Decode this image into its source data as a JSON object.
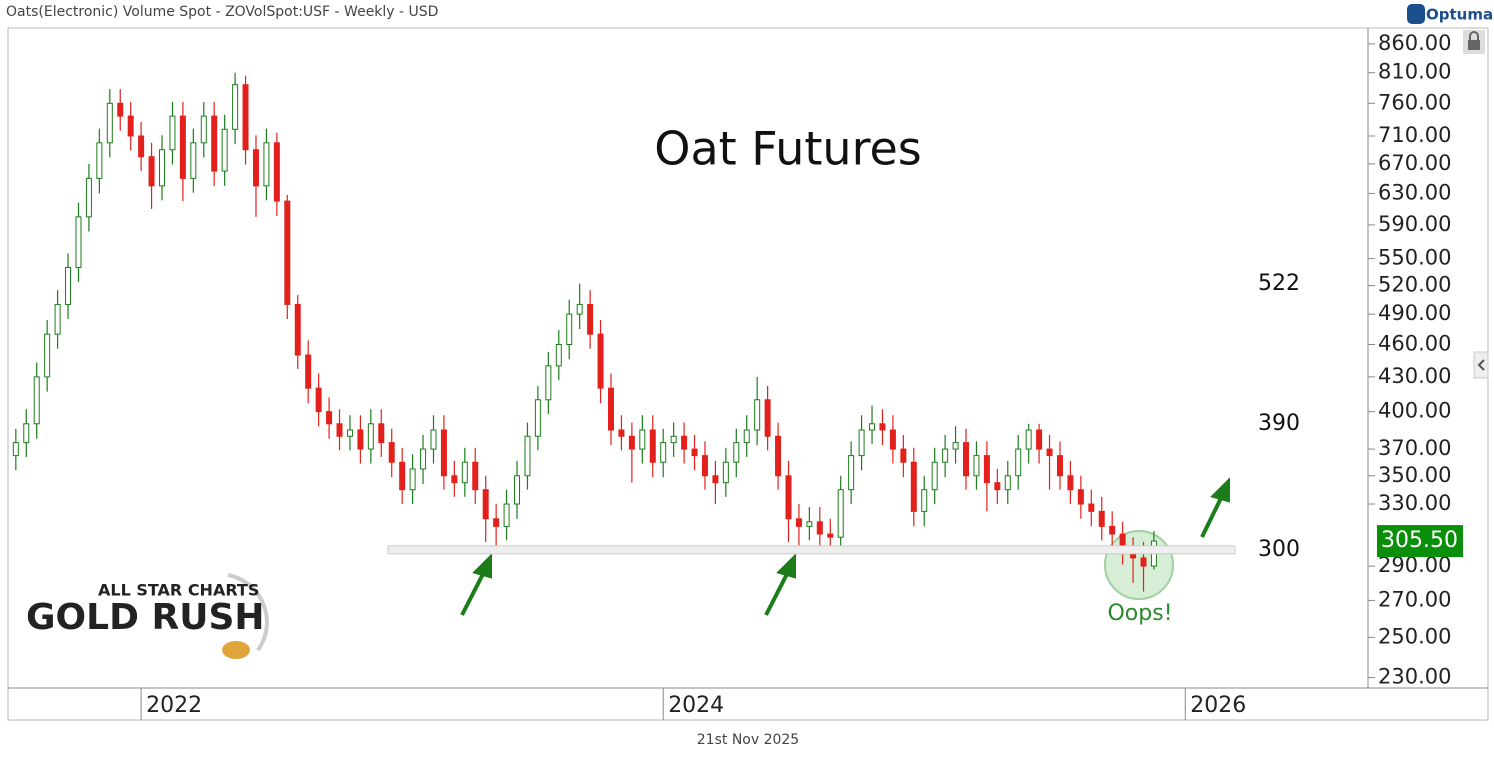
{
  "chart_data": {
    "type": "candlestick",
    "title": "Oats(Electronic) Volume Spot - ZOVolSpot:USF - Weekly - USD",
    "brand": "Optuma",
    "annotation": "Oat Futures",
    "note": "Oops!",
    "footer_date": "21st Nov 2025",
    "logo": [
      "ALL STAR CHARTS",
      "GOLD RUSH"
    ],
    "log_y": true,
    "up_color": "#1c7d1c",
    "down_color": "#e3211c",
    "ylim": [
      225,
      889
    ],
    "yticks": [
      {
        "value": 860,
        "label": "860.00"
      },
      {
        "value": 810,
        "label": "810.00"
      },
      {
        "value": 760,
        "label": "760.00"
      },
      {
        "value": 710,
        "label": "710.00"
      },
      {
        "value": 670,
        "label": "670.00"
      },
      {
        "value": 630,
        "label": "630.00"
      },
      {
        "value": 590,
        "label": "590.00"
      },
      {
        "value": 550,
        "label": "550.00"
      },
      {
        "value": 520,
        "label": "520.00"
      },
      {
        "value": 490,
        "label": "490.00"
      },
      {
        "value": 460,
        "label": "460.00"
      },
      {
        "value": 430,
        "label": "430.00"
      },
      {
        "value": 400,
        "label": "400.00"
      },
      {
        "value": 370,
        "label": "370.00"
      },
      {
        "value": 350,
        "label": "350.00"
      },
      {
        "value": 330,
        "label": "330.00"
      },
      {
        "value": 290,
        "label": "290.00"
      },
      {
        "value": 270,
        "label": "270.00"
      },
      {
        "value": 250,
        "label": "250.00"
      },
      {
        "value": 230,
        "label": "230.00"
      }
    ],
    "xlim": [
      2021.49,
      2026.7
    ],
    "xticks": [
      2022,
      2024,
      2026
    ],
    "levels": [
      522,
      390,
      300
    ],
    "last_price": {
      "value": 305.5,
      "label": "305.50",
      "color": "#0a8f0a"
    },
    "x": [
      2021.52,
      2021.56,
      2021.6,
      2021.64,
      2021.68,
      2021.72,
      2021.76,
      2021.8,
      2021.84,
      2021.88,
      2021.92,
      2021.96,
      2022.0,
      2022.04,
      2022.08,
      2022.12,
      2022.16,
      2022.2,
      2022.24,
      2022.28,
      2022.32,
      2022.36,
      2022.4,
      2022.44,
      2022.48,
      2022.52,
      2022.56,
      2022.6,
      2022.64,
      2022.68,
      2022.72,
      2022.76,
      2022.8,
      2022.84,
      2022.88,
      2022.92,
      2022.96,
      2023.0,
      2023.04,
      2023.08,
      2023.12,
      2023.16,
      2023.2,
      2023.24,
      2023.28,
      2023.32,
      2023.36,
      2023.4,
      2023.44,
      2023.48,
      2023.52,
      2023.56,
      2023.6,
      2023.64,
      2023.68,
      2023.72,
      2023.76,
      2023.8,
      2023.84,
      2023.88,
      2023.92,
      2023.96,
      2024.0,
      2024.04,
      2024.08,
      2024.12,
      2024.16,
      2024.2,
      2024.24,
      2024.28,
      2024.32,
      2024.36,
      2024.4,
      2024.44,
      2024.48,
      2024.52,
      2024.56,
      2024.6,
      2024.64,
      2024.68,
      2024.72,
      2024.76,
      2024.8,
      2024.84,
      2024.88,
      2024.92,
      2024.96,
      2025.0,
      2025.04,
      2025.08,
      2025.12,
      2025.16,
      2025.2,
      2025.24,
      2025.28,
      2025.32,
      2025.36,
      2025.4,
      2025.44,
      2025.48,
      2025.52,
      2025.56,
      2025.6,
      2025.64,
      2025.68,
      2025.72,
      2025.76,
      2025.8,
      2025.84,
      2025.88
    ],
    "ohlc": [
      [
        365,
        386,
        354,
        375
      ],
      [
        375,
        402,
        364,
        390
      ],
      [
        390,
        443,
        378,
        430
      ],
      [
        430,
        484,
        417,
        470
      ],
      [
        470,
        515,
        456,
        500
      ],
      [
        500,
        556,
        485,
        540
      ],
      [
        540,
        618,
        524,
        600
      ],
      [
        600,
        670,
        582,
        650
      ],
      [
        650,
        721,
        630,
        700
      ],
      [
        700,
        783,
        679,
        760
      ],
      [
        760,
        783,
        718,
        740
      ],
      [
        740,
        762,
        689,
        710
      ],
      [
        710,
        731,
        660,
        680
      ],
      [
        680,
        700,
        610,
        640
      ],
      [
        640,
        711,
        621,
        690
      ],
      [
        690,
        762,
        669,
        740
      ],
      [
        740,
        762,
        620,
        650
      ],
      [
        650,
        721,
        631,
        700
      ],
      [
        700,
        762,
        679,
        740
      ],
      [
        740,
        762,
        640,
        660
      ],
      [
        660,
        742,
        640,
        720
      ],
      [
        720,
        810,
        698,
        790
      ],
      [
        790,
        805,
        669,
        690
      ],
      [
        690,
        711,
        600,
        640
      ],
      [
        640,
        721,
        621,
        700
      ],
      [
        700,
        715,
        601,
        620
      ],
      [
        620,
        628,
        485,
        500
      ],
      [
        500,
        510,
        437,
        450
      ],
      [
        450,
        464,
        407,
        420
      ],
      [
        420,
        433,
        388,
        400
      ],
      [
        400,
        412,
        378,
        390
      ],
      [
        390,
        402,
        369,
        380
      ],
      [
        380,
        397,
        369,
        385
      ],
      [
        385,
        397,
        359,
        370
      ],
      [
        370,
        402,
        359,
        390
      ],
      [
        390,
        402,
        364,
        375
      ],
      [
        375,
        386,
        349,
        360
      ],
      [
        360,
        371,
        330,
        340
      ],
      [
        340,
        366,
        330,
        355
      ],
      [
        355,
        381,
        344,
        370
      ],
      [
        370,
        397,
        359,
        385
      ],
      [
        385,
        397,
        340,
        350
      ],
      [
        350,
        361,
        335,
        345
      ],
      [
        345,
        371,
        335,
        360
      ],
      [
        360,
        371,
        330,
        340
      ],
      [
        340,
        350,
        305,
        320
      ],
      [
        320,
        330,
        300,
        315
      ],
      [
        315,
        340,
        306,
        330
      ],
      [
        330,
        361,
        320,
        350
      ],
      [
        350,
        391,
        340,
        380
      ],
      [
        380,
        422,
        369,
        410
      ],
      [
        410,
        453,
        398,
        440
      ],
      [
        440,
        474,
        427,
        460
      ],
      [
        460,
        505,
        446,
        490
      ],
      [
        490,
        522,
        475,
        500
      ],
      [
        500,
        515,
        456,
        470
      ],
      [
        470,
        484,
        407,
        420
      ],
      [
        420,
        433,
        373,
        385
      ],
      [
        385,
        397,
        369,
        380
      ],
      [
        380,
        391,
        345,
        370
      ],
      [
        370,
        397,
        359,
        385
      ],
      [
        385,
        397,
        349,
        360
      ],
      [
        360,
        386,
        349,
        375
      ],
      [
        375,
        391,
        364,
        380
      ],
      [
        380,
        391,
        359,
        370
      ],
      [
        370,
        381,
        354,
        365
      ],
      [
        365,
        376,
        340,
        350
      ],
      [
        350,
        361,
        330,
        345
      ],
      [
        345,
        371,
        335,
        360
      ],
      [
        360,
        386,
        349,
        375
      ],
      [
        375,
        397,
        364,
        385
      ],
      [
        385,
        430,
        373,
        410
      ],
      [
        410,
        422,
        369,
        380
      ],
      [
        380,
        391,
        340,
        350
      ],
      [
        350,
        361,
        305,
        320
      ],
      [
        320,
        330,
        300,
        315
      ],
      [
        315,
        328,
        306,
        318
      ],
      [
        318,
        328,
        301,
        310
      ],
      [
        310,
        320,
        302,
        308
      ],
      [
        308,
        350,
        300,
        340
      ],
      [
        340,
        376,
        330,
        365
      ],
      [
        365,
        397,
        354,
        385
      ],
      [
        385,
        405,
        374,
        390
      ],
      [
        390,
        402,
        373,
        385
      ],
      [
        385,
        397,
        359,
        370
      ],
      [
        370,
        381,
        349,
        360
      ],
      [
        360,
        371,
        315,
        325
      ],
      [
        325,
        350,
        315,
        340
      ],
      [
        340,
        371,
        330,
        360
      ],
      [
        360,
        381,
        349,
        370
      ],
      [
        370,
        388,
        359,
        375
      ],
      [
        375,
        386,
        340,
        350
      ],
      [
        350,
        376,
        340,
        365
      ],
      [
        365,
        376,
        325,
        345
      ],
      [
        345,
        355,
        330,
        340
      ],
      [
        340,
        361,
        330,
        350
      ],
      [
        350,
        381,
        340,
        370
      ],
      [
        370,
        390,
        359,
        385
      ],
      [
        385,
        390,
        359,
        370
      ],
      [
        370,
        381,
        340,
        365
      ],
      [
        365,
        376,
        340,
        350
      ],
      [
        350,
        361,
        330,
        340
      ],
      [
        340,
        350,
        320,
        330
      ],
      [
        330,
        340,
        315,
        325
      ],
      [
        325,
        335,
        306,
        315
      ],
      [
        315,
        325,
        300,
        310
      ],
      [
        310,
        318,
        291,
        300
      ],
      [
        300,
        308,
        280,
        295
      ],
      [
        295,
        305,
        275,
        290
      ],
      [
        290,
        312,
        288,
        305.5
      ]
    ]
  }
}
